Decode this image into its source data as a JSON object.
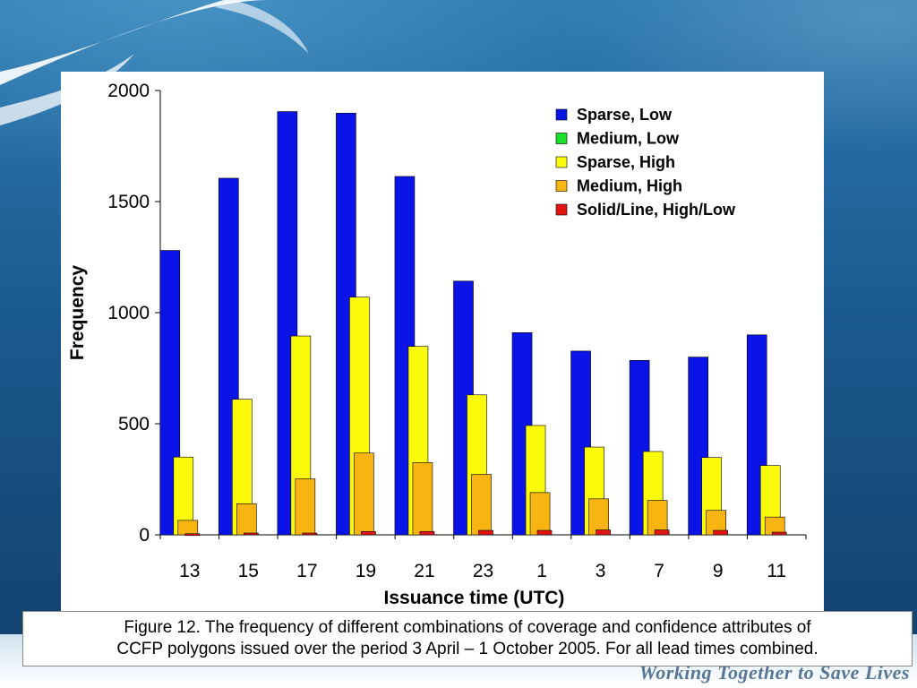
{
  "slide": {
    "tagline": "Working Together to Save Lives",
    "caption_line1": "Figure 12. The frequency of different combinations of coverage and confidence attributes of",
    "caption_line2": "CCFP polygons issued over the period 3 April – 1 October 2005.  For all lead times combined."
  },
  "colors": {
    "sparse_low": "#0a14e6",
    "medium_low": "#19e02a",
    "sparse_high": "#fafa0a",
    "medium_high": "#f8b410",
    "solid_line": "#e41414"
  },
  "chart_data": {
    "type": "bar",
    "title": "",
    "xlabel": "Issuance time (UTC)",
    "ylabel": "Frequency",
    "ylim": [
      0,
      2000
    ],
    "yticks": [
      0,
      500,
      1000,
      1500,
      2000
    ],
    "categories": [
      "13",
      "15",
      "17",
      "19",
      "21",
      "23",
      "1",
      "3",
      "7",
      "9",
      "11"
    ],
    "legend_position": "top-right",
    "grid": false,
    "series": [
      {
        "name": "Sparse, Low",
        "color": "#0a14e6",
        "values": [
          1280,
          1605,
          1905,
          1898,
          1613,
          1142,
          910,
          827,
          785,
          800,
          900
        ]
      },
      {
        "name": "Medium, Low",
        "color": "#19e02a",
        "values": [
          0,
          0,
          0,
          0,
          0,
          0,
          0,
          0,
          0,
          0,
          0
        ]
      },
      {
        "name": "Sparse, High",
        "color": "#fafa0a",
        "values": [
          350,
          610,
          895,
          1070,
          848,
          630,
          492,
          395,
          375,
          348,
          312
        ]
      },
      {
        "name": "Medium, High",
        "color": "#f8b410",
        "values": [
          65,
          140,
          252,
          368,
          325,
          272,
          190,
          162,
          155,
          110,
          80
        ]
      },
      {
        "name": "Solid/Line, High/Low",
        "color": "#e41414",
        "values": [
          5,
          8,
          8,
          15,
          15,
          20,
          20,
          22,
          22,
          20,
          12
        ]
      }
    ]
  }
}
